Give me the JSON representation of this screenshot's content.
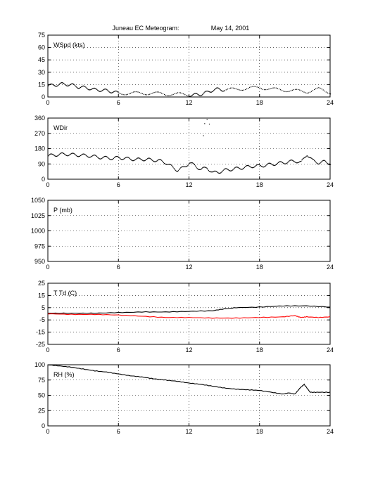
{
  "figure": {
    "title": "Juneau EC Meteogram:",
    "date": "May 14, 2001"
  },
  "colors": {
    "axis": "#000000",
    "td": "#ff0000",
    "series": "#000000"
  },
  "chart_data": [
    {
      "type": "line",
      "label": "WSpd (kts)",
      "xlim": [
        0,
        24
      ],
      "xticks": [
        0,
        6,
        12,
        18,
        24
      ],
      "ylim": [
        0,
        75
      ],
      "yticks": [
        0,
        15,
        30,
        45,
        60,
        75
      ],
      "grid": true,
      "series": [
        {
          "style": "dots",
          "x": [
            0,
            0.5,
            1,
            1.5,
            2,
            2.5,
            3,
            3.5,
            4,
            4.5,
            5,
            5.5,
            6,
            7,
            8,
            9,
            10,
            11,
            12,
            12.5,
            13,
            13.5,
            14,
            14.5,
            15,
            16,
            17,
            18,
            19,
            20,
            21,
            22,
            23,
            24
          ],
          "y": [
            14,
            15,
            16,
            16,
            15,
            13,
            12,
            11,
            9,
            9,
            8,
            7,
            5,
            5,
            5,
            5,
            4,
            4,
            3,
            3,
            4,
            6,
            9,
            10,
            9,
            10,
            11,
            12,
            10,
            9,
            8,
            7,
            10,
            6
          ]
        }
      ]
    },
    {
      "type": "scatter",
      "label": "WDir",
      "xlim": [
        0,
        24
      ],
      "xticks": [
        0,
        6,
        12,
        18,
        24
      ],
      "ylim": [
        0,
        360
      ],
      "yticks": [
        0,
        90,
        180,
        270,
        360
      ],
      "grid": true,
      "series": [
        {
          "style": "dots",
          "x": [
            0,
            0.5,
            1,
            1.5,
            2,
            2.5,
            3,
            3.5,
            4,
            4.5,
            5,
            5.5,
            6,
            6.5,
            7,
            7.5,
            8,
            8.5,
            9,
            9.5,
            10,
            10.5,
            11,
            11.5,
            12,
            12.5,
            13,
            13.5,
            14,
            14.5,
            15,
            15.5,
            16,
            16.5,
            17,
            17.5,
            18,
            18.5,
            19,
            19.5,
            20,
            20.5,
            21,
            21.5,
            22,
            22.5,
            23,
            23.5,
            24
          ],
          "y": [
            140,
            145,
            148,
            150,
            147,
            145,
            142,
            140,
            135,
            130,
            128,
            125,
            130,
            125,
            122,
            118,
            120,
            118,
            115,
            110,
            100,
            75,
            55,
            70,
            100,
            80,
            60,
            70,
            40,
            45,
            55,
            60,
            65,
            70,
            75,
            80,
            80,
            85,
            90,
            95,
            100,
            105,
            110,
            100,
            150,
            110,
            100,
            105,
            95
          ]
        },
        {
          "style": "dots",
          "x": [
            13.3,
            13.5,
            13.7,
            13.2
          ],
          "y": [
            330,
            350,
            320,
            250
          ]
        }
      ]
    },
    {
      "type": "line",
      "label": "P (mb)",
      "xlim": [
        0,
        24
      ],
      "xticks": [
        0,
        6,
        12,
        18,
        24
      ],
      "ylim": [
        950,
        1050
      ],
      "yticks": [
        950,
        975,
        1000,
        1025,
        1050
      ],
      "grid": true,
      "series": []
    },
    {
      "type": "line",
      "label": "T Td (C)",
      "xlim": [
        0,
        24
      ],
      "xticks": [
        0,
        6,
        12,
        18,
        24
      ],
      "ylim": [
        -25,
        25
      ],
      "yticks": [
        -25,
        -15,
        -5,
        5,
        15,
        25
      ],
      "grid": true,
      "series": [
        {
          "style": "line",
          "color": "#000000",
          "x": [
            0,
            2,
            4,
            6,
            8,
            10,
            12,
            14,
            15,
            16,
            18,
            20,
            22,
            24
          ],
          "y": [
            0.5,
            0.5,
            0.5,
            1,
            1.5,
            1.5,
            2,
            2.5,
            4,
            5,
            5.5,
            6.5,
            6.5,
            5.5
          ]
        },
        {
          "style": "line",
          "color": "#ff0000",
          "x": [
            0,
            2,
            4,
            6,
            8,
            10,
            12,
            14,
            16,
            18,
            20,
            21,
            21.5,
            22,
            23,
            24
          ],
          "y": [
            0,
            -0.5,
            -0.5,
            -1,
            -2,
            -3,
            -3,
            -3.5,
            -3.5,
            -3,
            -2.5,
            -1.5,
            -3,
            -2.5,
            -3,
            -2.5
          ]
        }
      ]
    },
    {
      "type": "line",
      "label": "RH (%)",
      "xlim": [
        0,
        24
      ],
      "xticks": [
        0,
        6,
        12,
        18,
        24
      ],
      "ylim": [
        0,
        100
      ],
      "yticks": [
        0,
        25,
        50,
        75,
        100
      ],
      "grid": true,
      "series": [
        {
          "style": "line",
          "color": "#000000",
          "x": [
            0,
            1,
            2,
            3,
            4,
            5,
            6,
            7,
            8,
            9,
            10,
            11,
            12,
            13,
            14,
            15,
            16,
            17,
            18,
            19,
            20,
            20.5,
            21,
            21.5,
            21.8,
            22.3,
            23,
            24
          ],
          "y": [
            100,
            98,
            96,
            93,
            90,
            88,
            85,
            82,
            80,
            77,
            75,
            73,
            70,
            68,
            65,
            62,
            60,
            59,
            58,
            55,
            52,
            54,
            52,
            63,
            68,
            55,
            55,
            55
          ]
        }
      ]
    }
  ]
}
